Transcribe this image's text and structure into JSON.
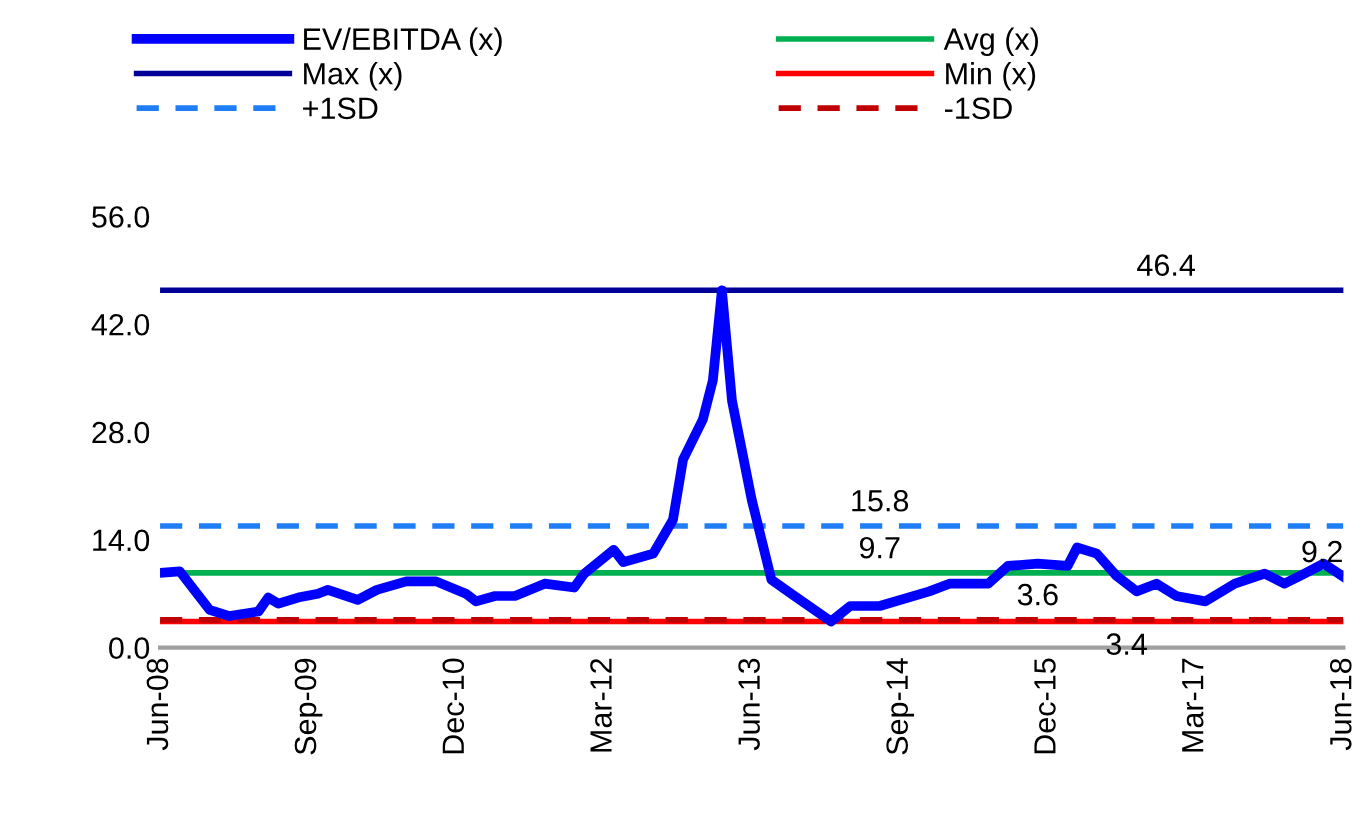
{
  "chart_data": {
    "type": "line",
    "x": [
      "2008-06",
      "2008-08",
      "2008-11",
      "2009-01",
      "2009-04",
      "2009-05",
      "2009-06",
      "2009-08",
      "2009-10",
      "2009-11",
      "2010-02",
      "2010-04",
      "2010-07",
      "2010-10",
      "2011-01",
      "2011-02",
      "2011-04",
      "2011-06",
      "2011-09",
      "2011-12",
      "2012-01",
      "2012-04",
      "2012-05",
      "2012-08",
      "2012-10",
      "2012-11",
      "2013-01",
      "2013-02",
      "2013-03",
      "2013-04",
      "2013-06",
      "2013-08",
      "2013-10",
      "2014-02",
      "2014-04",
      "2014-07",
      "2014-12",
      "2015-02",
      "2015-06",
      "2015-08",
      "2015-11",
      "2016-02",
      "2016-03",
      "2016-05",
      "2016-07",
      "2016-09",
      "2016-11",
      "2017-01",
      "2017-04",
      "2017-07",
      "2017-10",
      "2017-12",
      "2018-02",
      "2018-04",
      "2018-06"
    ],
    "series": [
      {
        "name": "EV/EBITDA (x)",
        "color": "#0000ff",
        "values": [
          9.7,
          9.9,
          4.9,
          4.1,
          4.7,
          6.5,
          5.7,
          6.5,
          7.0,
          7.5,
          6.2,
          7.5,
          8.6,
          8.6,
          7.0,
          6.0,
          6.7,
          6.7,
          8.3,
          7.8,
          9.6,
          12.7,
          11.1,
          12.2,
          16.6,
          24.4,
          29.6,
          34.7,
          46.4,
          32.1,
          19.2,
          8.8,
          7.0,
          3.4,
          5.4,
          5.4,
          7.3,
          8.3,
          8.3,
          10.6,
          10.9,
          10.6,
          13.0,
          12.2,
          9.3,
          7.3,
          8.3,
          6.7,
          6.0,
          8.3,
          9.6,
          8.3,
          9.6,
          10.9,
          9.2
        ]
      }
    ],
    "ref_lines": [
      {
        "axis": "y",
        "value": 9.7,
        "label": "Avg (x)",
        "color": "#00b050",
        "line_style": "solid"
      },
      {
        "axis": "y",
        "value": 46.4,
        "label": "Max (x)",
        "color": "#000099",
        "line_style": "solid"
      },
      {
        "axis": "y",
        "value": 3.4,
        "label": "Min (x)",
        "color": "#ff0000",
        "line_style": "solid"
      },
      {
        "axis": "y",
        "value": 15.8,
        "label": "+1SD",
        "color": "#1f7df5",
        "line_style": "dashed"
      },
      {
        "axis": "y",
        "value": 3.6,
        "label": "-1SD",
        "color": "#c00000",
        "line_style": "dashed"
      }
    ],
    "annotations": [
      {
        "text": "46.4",
        "x": "2016-12",
        "y": 46.4
      },
      {
        "text": "15.8",
        "x": "2014-07",
        "y": 15.8
      },
      {
        "text": "9.7",
        "x": "2014-07",
        "y": 9.7
      },
      {
        "text": "3.6",
        "x": "2015-11",
        "y": 3.6
      },
      {
        "text": "3.4",
        "x": "2016-08",
        "y": 3.4
      },
      {
        "text": "9.2",
        "x": "2018-06",
        "y": 9.2
      }
    ],
    "xlim": [
      "2008-06",
      "2018-06"
    ],
    "xticks": [
      {
        "value": "2008-06",
        "label": "Jun-08"
      },
      {
        "value": "2009-09",
        "label": "Sep-09"
      },
      {
        "value": "2010-12",
        "label": "Dec-10"
      },
      {
        "value": "2012-03",
        "label": "Mar-12"
      },
      {
        "value": "2013-06",
        "label": "Jun-13"
      },
      {
        "value": "2014-09",
        "label": "Sep-14"
      },
      {
        "value": "2015-12",
        "label": "Dec-15"
      },
      {
        "value": "2017-03",
        "label": "Mar-17"
      },
      {
        "value": "2018-06",
        "label": "Jun-18"
      }
    ],
    "ylim": [
      0,
      56
    ],
    "yticks": [
      {
        "value": 0,
        "label": "0.0"
      },
      {
        "value": 14,
        "label": "14.0"
      },
      {
        "value": 28,
        "label": "28.0"
      },
      {
        "value": 42,
        "label": "42.0"
      },
      {
        "value": 56,
        "label": "56.0"
      }
    ],
    "grid": false,
    "legend": "top",
    "marker": "none",
    "line_style": "solid"
  }
}
